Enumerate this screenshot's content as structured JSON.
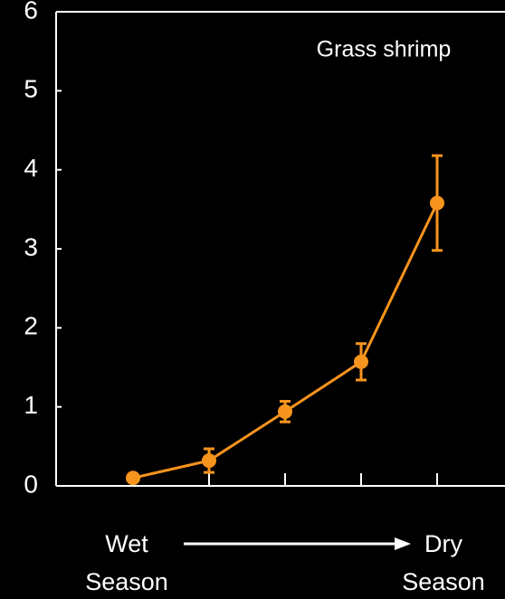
{
  "chart_data": {
    "type": "line",
    "title": "Grass shrimp",
    "categories": [
      null,
      null,
      null,
      null,
      null
    ],
    "series": [
      {
        "name": null,
        "color": "#f7941d",
        "values": [
          0.1,
          0.32,
          0.94,
          1.57,
          3.58
        ],
        "errors": [
          0,
          0.15,
          0.13,
          0.23,
          0.6
        ]
      }
    ],
    "ylim": [
      0,
      6
    ],
    "yticks": [
      0,
      1,
      2,
      3,
      4,
      5,
      6
    ],
    "grid": false,
    "annotations": [
      "Wet Season",
      "Dry Season"
    ]
  }
}
